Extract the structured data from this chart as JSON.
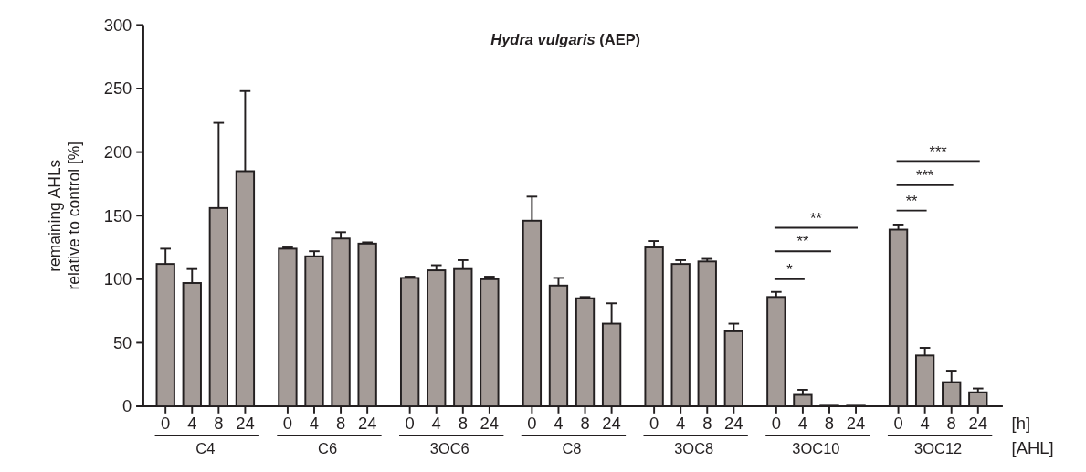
{
  "chart_data": {
    "type": "bar",
    "title": "Hydra vulgaris (AEP)",
    "ylabel": "remaining  AHLs\nrelative to control [%]",
    "categories": [
      "0",
      "4",
      "8",
      "24",
      "0",
      "4",
      "8",
      "24",
      "0",
      "4",
      "8",
      "24",
      "0",
      "4",
      "8",
      "24",
      "0",
      "4",
      "8",
      "24",
      "0",
      "4",
      "8",
      "24",
      "0",
      "4",
      "8",
      "24"
    ],
    "values": [
      112,
      97,
      156,
      185,
      124,
      118,
      132,
      128,
      101,
      107,
      108,
      100,
      146,
      95,
      85,
      65,
      125,
      112,
      114,
      59,
      86,
      9,
      0.5,
      0.5,
      139,
      40,
      19,
      11
    ],
    "errors": [
      [
        112,
        124
      ],
      [
        97,
        108
      ],
      [
        156,
        223
      ],
      [
        185,
        248
      ],
      [
        124,
        125
      ],
      [
        118,
        122
      ],
      [
        132,
        137
      ],
      [
        128,
        129
      ],
      [
        101,
        102
      ],
      [
        107,
        111
      ],
      [
        108,
        115
      ],
      [
        100,
        102
      ],
      [
        146,
        165
      ],
      [
        95,
        101
      ],
      [
        85,
        86
      ],
      [
        65,
        81
      ],
      [
        125,
        130
      ],
      [
        112,
        115
      ],
      [
        114,
        116
      ],
      [
        59,
        65
      ],
      [
        86,
        90
      ],
      [
        9,
        13
      ],
      null,
      null,
      [
        139,
        143
      ],
      [
        40,
        46
      ],
      [
        19,
        28
      ],
      [
        11,
        14
      ]
    ],
    "color": "#a59c98",
    "ylim": [
      0,
      300
    ],
    "yticks": [
      0,
      50,
      100,
      150,
      200,
      250,
      300
    ],
    "grid": false,
    "annotations": [
      "C4",
      "C6",
      "3OC6",
      "C8",
      "3OC8",
      "3OC10",
      "3OC12",
      "[h]",
      "[AHL]",
      "*",
      "**",
      "**",
      "**",
      "***",
      "***"
    ]
  }
}
